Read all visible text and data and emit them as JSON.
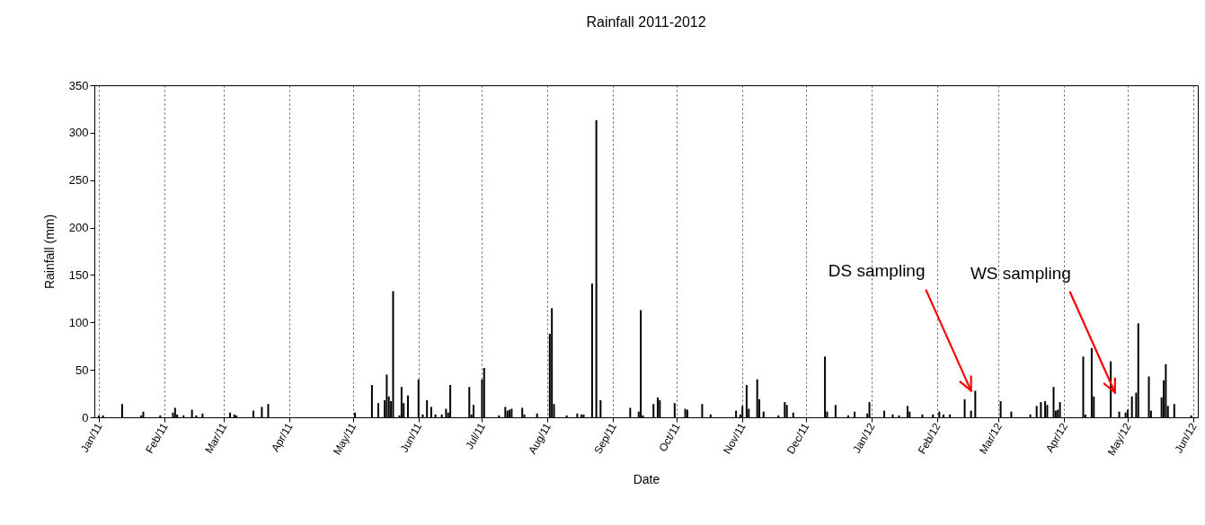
{
  "chart_data": {
    "type": "bar",
    "title": "Rainfall 2011-2012",
    "xlabel": "Date",
    "ylabel": "Rainfall (mm)",
    "color": "#000000",
    "x": [
      "2011-01-01",
      "2011-01-03",
      "2011-01-12",
      "2011-01-21",
      "2011-01-22",
      "2011-01-30",
      "2011-02-05",
      "2011-02-06",
      "2011-02-07",
      "2011-02-10",
      "2011-02-14",
      "2011-02-16",
      "2011-02-19",
      "2011-03-04",
      "2011-03-06",
      "2011-03-07",
      "2011-03-15",
      "2011-03-19",
      "2011-03-22",
      "2011-05-02",
      "2011-05-10",
      "2011-05-13",
      "2011-05-16",
      "2011-05-17",
      "2011-05-18",
      "2011-05-19",
      "2011-05-20",
      "2011-05-23",
      "2011-05-24",
      "2011-05-25",
      "2011-05-27",
      "2011-06-01",
      "2011-06-03",
      "2011-06-05",
      "2011-06-07",
      "2011-06-09",
      "2011-06-12",
      "2011-06-14",
      "2011-06-15",
      "2011-06-16",
      "2011-06-25",
      "2011-06-26",
      "2011-06-27",
      "2011-07-01",
      "2011-07-02",
      "2011-07-09",
      "2011-07-12",
      "2011-07-13",
      "2011-07-14",
      "2011-07-15",
      "2011-07-20",
      "2011-07-21",
      "2011-07-27",
      "2011-08-02",
      "2011-08-03",
      "2011-08-04",
      "2011-08-10",
      "2011-08-15",
      "2011-08-17",
      "2011-08-18",
      "2011-08-22",
      "2011-08-24",
      "2011-08-26",
      "2011-09-09",
      "2011-09-13",
      "2011-09-14",
      "2011-09-15",
      "2011-09-20",
      "2011-09-22",
      "2011-09-23",
      "2011-09-30",
      "2011-10-05",
      "2011-10-06",
      "2011-10-13",
      "2011-10-17",
      "2011-10-29",
      "2011-10-31",
      "2011-11-01",
      "2011-11-03",
      "2011-11-04",
      "2011-11-08",
      "2011-11-09",
      "2011-11-11",
      "2011-11-18",
      "2011-11-21",
      "2011-11-22",
      "2011-11-25",
      "2011-12-10",
      "2011-12-11",
      "2011-12-15",
      "2011-12-21",
      "2011-12-24",
      "2011-12-30",
      "2011-12-31",
      "2012-01-07",
      "2012-01-11",
      "2012-01-14",
      "2012-01-18",
      "2012-01-19",
      "2012-01-25",
      "2012-01-30",
      "2012-02-02",
      "2012-02-04",
      "2012-02-07",
      "2012-02-14",
      "2012-02-17",
      "2012-02-19",
      "2012-03-02",
      "2012-03-07",
      "2012-03-16",
      "2012-03-19",
      "2012-03-21",
      "2012-03-23",
      "2012-03-24",
      "2012-03-27",
      "2012-03-28",
      "2012-03-29",
      "2012-03-30",
      "2012-04-10",
      "2012-04-11",
      "2012-04-14",
      "2012-04-15",
      "2012-04-23",
      "2012-04-27",
      "2012-04-30",
      "2012-05-01",
      "2012-05-03",
      "2012-05-05",
      "2012-05-06",
      "2012-05-11",
      "2012-05-12",
      "2012-05-17",
      "2012-05-18",
      "2012-05-19",
      "2012-05-20",
      "2012-05-23",
      "2012-05-31"
    ],
    "values": [
      2,
      2,
      14,
      2,
      6,
      2,
      5,
      10,
      3,
      2,
      8,
      2,
      4,
      5,
      3,
      2,
      7,
      11,
      14,
      5,
      34,
      15,
      18,
      45,
      22,
      17,
      133,
      2,
      32,
      15,
      23,
      40,
      3,
      18,
      11,
      3,
      3,
      9,
      5,
      34,
      32,
      3,
      13,
      40,
      52,
      2,
      11,
      7,
      8,
      9,
      10,
      3,
      4,
      88,
      115,
      14,
      2,
      4,
      3,
      3,
      141,
      313,
      18,
      10,
      6,
      113,
      2,
      14,
      21,
      18,
      15,
      9,
      8,
      14,
      3,
      7,
      3,
      12,
      34,
      9,
      40,
      19,
      6,
      2,
      16,
      13,
      5,
      64,
      6,
      13,
      2,
      6,
      4,
      16,
      7,
      3,
      2,
      12,
      6,
      3,
      3,
      6,
      3,
      3,
      19,
      7,
      28,
      17,
      6,
      3,
      12,
      16,
      17,
      13,
      32,
      7,
      8,
      16,
      64,
      3,
      73,
      22,
      59,
      6,
      5,
      8,
      22,
      26,
      99,
      43,
      7,
      21,
      39,
      56,
      12,
      14,
      2
    ],
    "xlim": [
      "2011-01-01",
      "2012-06-01"
    ],
    "xticks": [
      {
        "value": "2011-01-01",
        "label": "Jan/11"
      },
      {
        "value": "2011-02-01",
        "label": "Feb/11"
      },
      {
        "value": "2011-03-01",
        "label": "Mar/11"
      },
      {
        "value": "2011-04-01",
        "label": "Apr/11"
      },
      {
        "value": "2011-05-01",
        "label": "May/11"
      },
      {
        "value": "2011-06-01",
        "label": "Jun/11"
      },
      {
        "value": "2011-07-01",
        "label": "Jul/11"
      },
      {
        "value": "2011-08-01",
        "label": "Aug/11"
      },
      {
        "value": "2011-09-01",
        "label": "Sep/11"
      },
      {
        "value": "2011-10-01",
        "label": "Oct/11"
      },
      {
        "value": "2011-11-01",
        "label": "Nov/11"
      },
      {
        "value": "2011-12-01",
        "label": "Dec/11"
      },
      {
        "value": "2012-01-01",
        "label": "Jan/12"
      },
      {
        "value": "2012-02-01",
        "label": "Feb/12"
      },
      {
        "value": "2012-03-01",
        "label": "Mar/12"
      },
      {
        "value": "2012-04-01",
        "label": "Apr/12"
      },
      {
        "value": "2012-05-01",
        "label": "May/12"
      },
      {
        "value": "2012-06-01",
        "label": "Jun/12"
      }
    ],
    "ylim": [
      0,
      350
    ],
    "yticks": [
      0,
      50,
      100,
      150,
      200,
      250,
      300,
      350
    ],
    "grid": "x",
    "annotations": [
      {
        "text": "DS sampling",
        "x": "2012-02-17",
        "y": 28
      },
      {
        "text": "WS sampling",
        "x": "2012-04-25",
        "y": 26
      }
    ]
  }
}
